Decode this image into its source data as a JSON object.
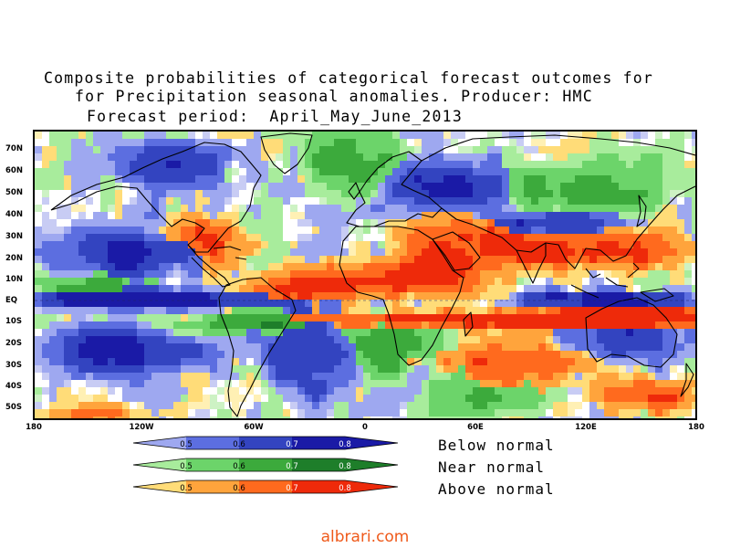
{
  "title": {
    "line1": "Composite probabilities of categorical forecast outcomes for",
    "line2": "for Precipitation seasonal anomalies. Producer: HMC",
    "line3": "Forecast period:  April_May_June_2013"
  },
  "map": {
    "lat_labels": [
      "70N",
      "60N",
      "50N",
      "40N",
      "30N",
      "20N",
      "10N",
      "EQ",
      "10S",
      "20S",
      "30S",
      "40S",
      "50S"
    ],
    "lon_labels": [
      "180",
      "120W",
      "60W",
      "0",
      "60E",
      "120E",
      "180"
    ]
  },
  "legend": {
    "ticks": [
      "0.5",
      "0.6",
      "0.7",
      "0.8"
    ],
    "below": {
      "label": "Below normal",
      "colors": [
        "#9ea8f0",
        "#5c6ee0",
        "#3344c0",
        "#1a1aa6"
      ]
    },
    "near": {
      "label": "Near normal",
      "colors": [
        "#a8ec9c",
        "#6cd46a",
        "#3caa3c",
        "#1e7e2a"
      ]
    },
    "above": {
      "label": "Above normal",
      "colors": [
        "#ffdc78",
        "#ffa43c",
        "#ff6a1e",
        "#ee2a0a"
      ]
    }
  },
  "watermark": "albrari.com"
}
